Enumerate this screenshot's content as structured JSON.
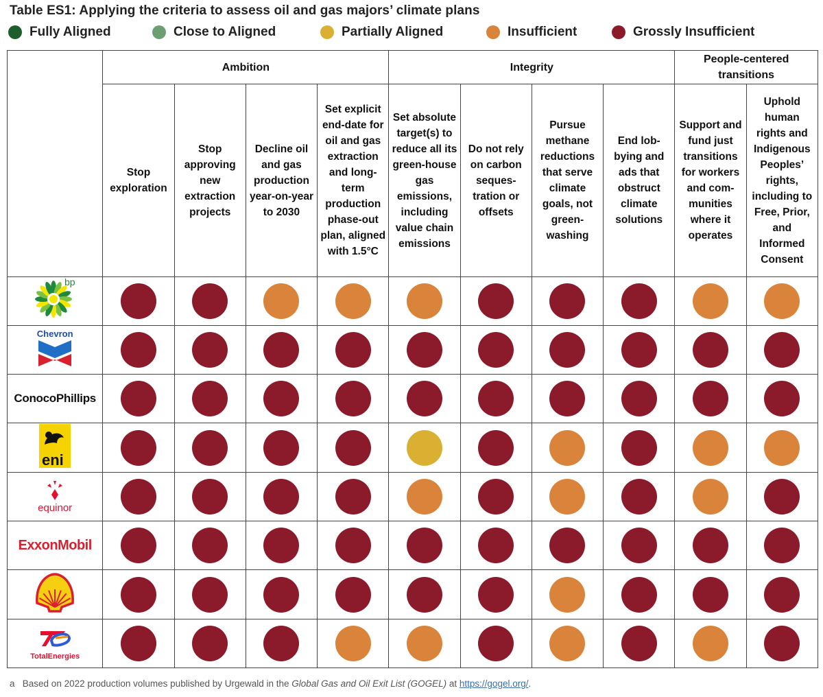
{
  "title": "Table ES1: Applying the criteria to assess oil and gas majors’ climate plans",
  "legend": [
    {
      "key": "fully",
      "label": "Fully Aligned",
      "color": "#1e5e2a"
    },
    {
      "key": "close",
      "label": "Close to Aligned",
      "color": "#6e9e74"
    },
    {
      "key": "partial",
      "label": "Partially Aligned",
      "color": "#d9b032"
    },
    {
      "key": "insufficient",
      "label": "Insufficient",
      "color": "#d9843a"
    },
    {
      "key": "grossly",
      "label": "Grossly Insufficient",
      "color": "#8b1a2b"
    }
  ],
  "groups": [
    {
      "label": "Ambition"
    },
    {
      "label": "Integrity"
    },
    {
      "label": "People-centered transitions"
    }
  ],
  "criteria": [
    {
      "label": "Stop exploration"
    },
    {
      "label": "Stop approving new extraction projects"
    },
    {
      "label": "Decline oil and gas production year-on-year to 2030"
    },
    {
      "label": "Set explicit end-date for oil and gas extraction and long-term production phase-out plan, aligned with 1.5°C"
    },
    {
      "label": "Set absolute target(s) to reduce all its green-house gas emissions, including value chain emissions"
    },
    {
      "label": "Do not rely on carbon seques-tration or offsets"
    },
    {
      "label": "Pursue methane reductions that serve climate goals, not green-washing"
    },
    {
      "label": "End lob-bying and ads that obstruct climate solutions"
    },
    {
      "label": "Support and fund just transitions for workers and com-munities where it operates"
    },
    {
      "label": "Uphold human rights and Indigenous Peoples’ rights, including to Free, Prior, and Informed Consent"
    }
  ],
  "companies": [
    {
      "name": "bp",
      "logo_text": "bp"
    },
    {
      "name": "Chevron",
      "logo_text": "Chevron"
    },
    {
      "name": "ConocoPhillips",
      "logo_text": "ConocoPhillips"
    },
    {
      "name": "Eni",
      "logo_text": "eni"
    },
    {
      "name": "Equinor",
      "logo_text": "equinor"
    },
    {
      "name": "ExxonMobil",
      "logo_text": "ExxonMobil"
    },
    {
      "name": "Shell",
      "logo_text": ""
    },
    {
      "name": "TotalEnergies",
      "logo_text": "TotalEnergies"
    }
  ],
  "chart_data": {
    "type": "table",
    "title": "Table ES1: Applying the criteria to assess oil and gas majors’ climate plans",
    "rows": [
      "bp",
      "Chevron",
      "ConocoPhillips",
      "Eni",
      "Equinor",
      "ExxonMobil",
      "Shell",
      "TotalEnergies"
    ],
    "columns": [
      "Stop exploration",
      "Stop approving new extraction projects",
      "Decline oil and gas production year-on-year to 2030",
      "Set explicit end-date for oil and gas extraction and long-term production phase-out plan, aligned with 1.5°C",
      "Set absolute target(s) to reduce all its green-house gas emissions, including value chain emissions",
      "Do not rely on carbon seques-tration or offsets",
      "Pursue methane reductions that serve climate goals, not green-washing",
      "End lob-bying and ads that obstruct climate solutions",
      "Support and fund just transitions for workers and com-munities where it operates",
      "Uphold human rights and Indigenous Peoples’ rights, including to Free, Prior, and Informed Consent"
    ],
    "values": [
      [
        "Grossly Insufficient",
        "Grossly Insufficient",
        "Insufficient",
        "Insufficient",
        "Insufficient",
        "Grossly Insufficient",
        "Grossly Insufficient",
        "Grossly Insufficient",
        "Insufficient",
        "Insufficient"
      ],
      [
        "Grossly Insufficient",
        "Grossly Insufficient",
        "Grossly Insufficient",
        "Grossly Insufficient",
        "Grossly Insufficient",
        "Grossly Insufficient",
        "Grossly Insufficient",
        "Grossly Insufficient",
        "Grossly Insufficient",
        "Grossly Insufficient"
      ],
      [
        "Grossly Insufficient",
        "Grossly Insufficient",
        "Grossly Insufficient",
        "Grossly Insufficient",
        "Grossly Insufficient",
        "Grossly Insufficient",
        "Grossly Insufficient",
        "Grossly Insufficient",
        "Grossly Insufficient",
        "Grossly Insufficient"
      ],
      [
        "Grossly Insufficient",
        "Grossly Insufficient",
        "Grossly Insufficient",
        "Grossly Insufficient",
        "Partially Aligned",
        "Grossly Insufficient",
        "Insufficient",
        "Grossly Insufficient",
        "Insufficient",
        "Insufficient"
      ],
      [
        "Grossly Insufficient",
        "Grossly Insufficient",
        "Grossly Insufficient",
        "Grossly Insufficient",
        "Insufficient",
        "Grossly Insufficient",
        "Insufficient",
        "Grossly Insufficient",
        "Insufficient",
        "Grossly Insufficient"
      ],
      [
        "Grossly Insufficient",
        "Grossly Insufficient",
        "Grossly Insufficient",
        "Grossly Insufficient",
        "Grossly Insufficient",
        "Grossly Insufficient",
        "Grossly Insufficient",
        "Grossly Insufficient",
        "Grossly Insufficient",
        "Grossly Insufficient"
      ],
      [
        "Grossly Insufficient",
        "Grossly Insufficient",
        "Grossly Insufficient",
        "Grossly Insufficient",
        "Grossly Insufficient",
        "Grossly Insufficient",
        "Insufficient",
        "Grossly Insufficient",
        "Grossly Insufficient",
        "Grossly Insufficient"
      ],
      [
        "Grossly Insufficient",
        "Grossly Insufficient",
        "Grossly Insufficient",
        "Insufficient",
        "Insufficient",
        "Grossly Insufficient",
        "Insufficient",
        "Grossly Insufficient",
        "Insufficient",
        "Grossly Insufficient"
      ]
    ]
  },
  "footnote": {
    "marker": "a",
    "text_before": "Based on 2022 production volumes published by Urgewald in the ",
    "italic": "Global Gas and Oil Exit List (GOGEL)",
    "text_middle": " at ",
    "link": "https://gogel.org/",
    "text_after": "."
  }
}
